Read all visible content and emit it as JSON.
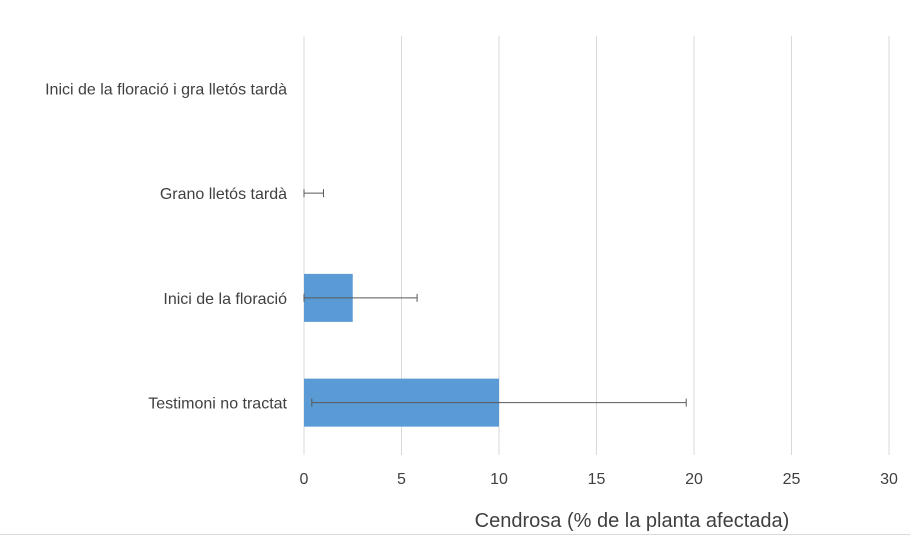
{
  "chart_data": {
    "type": "bar",
    "orientation": "horizontal",
    "categories": [
      "Inici de la floració i gra lletós tardà",
      "Grano lletós tardà",
      "Inici de la floració",
      "Testimoni no tractat"
    ],
    "series": [
      {
        "values": [
          0,
          0,
          2.5,
          10
        ],
        "error": [
          0,
          1,
          3.3,
          9.6
        ],
        "color": "#5B9BD5"
      }
    ],
    "xlabel": "Cendrosa (% de la planta afectada)",
    "ylabel": "",
    "xlim": [
      0,
      30
    ],
    "xticks": [
      0,
      5,
      10,
      15,
      20,
      25,
      30
    ],
    "grid": "vertical",
    "legend": "none"
  }
}
